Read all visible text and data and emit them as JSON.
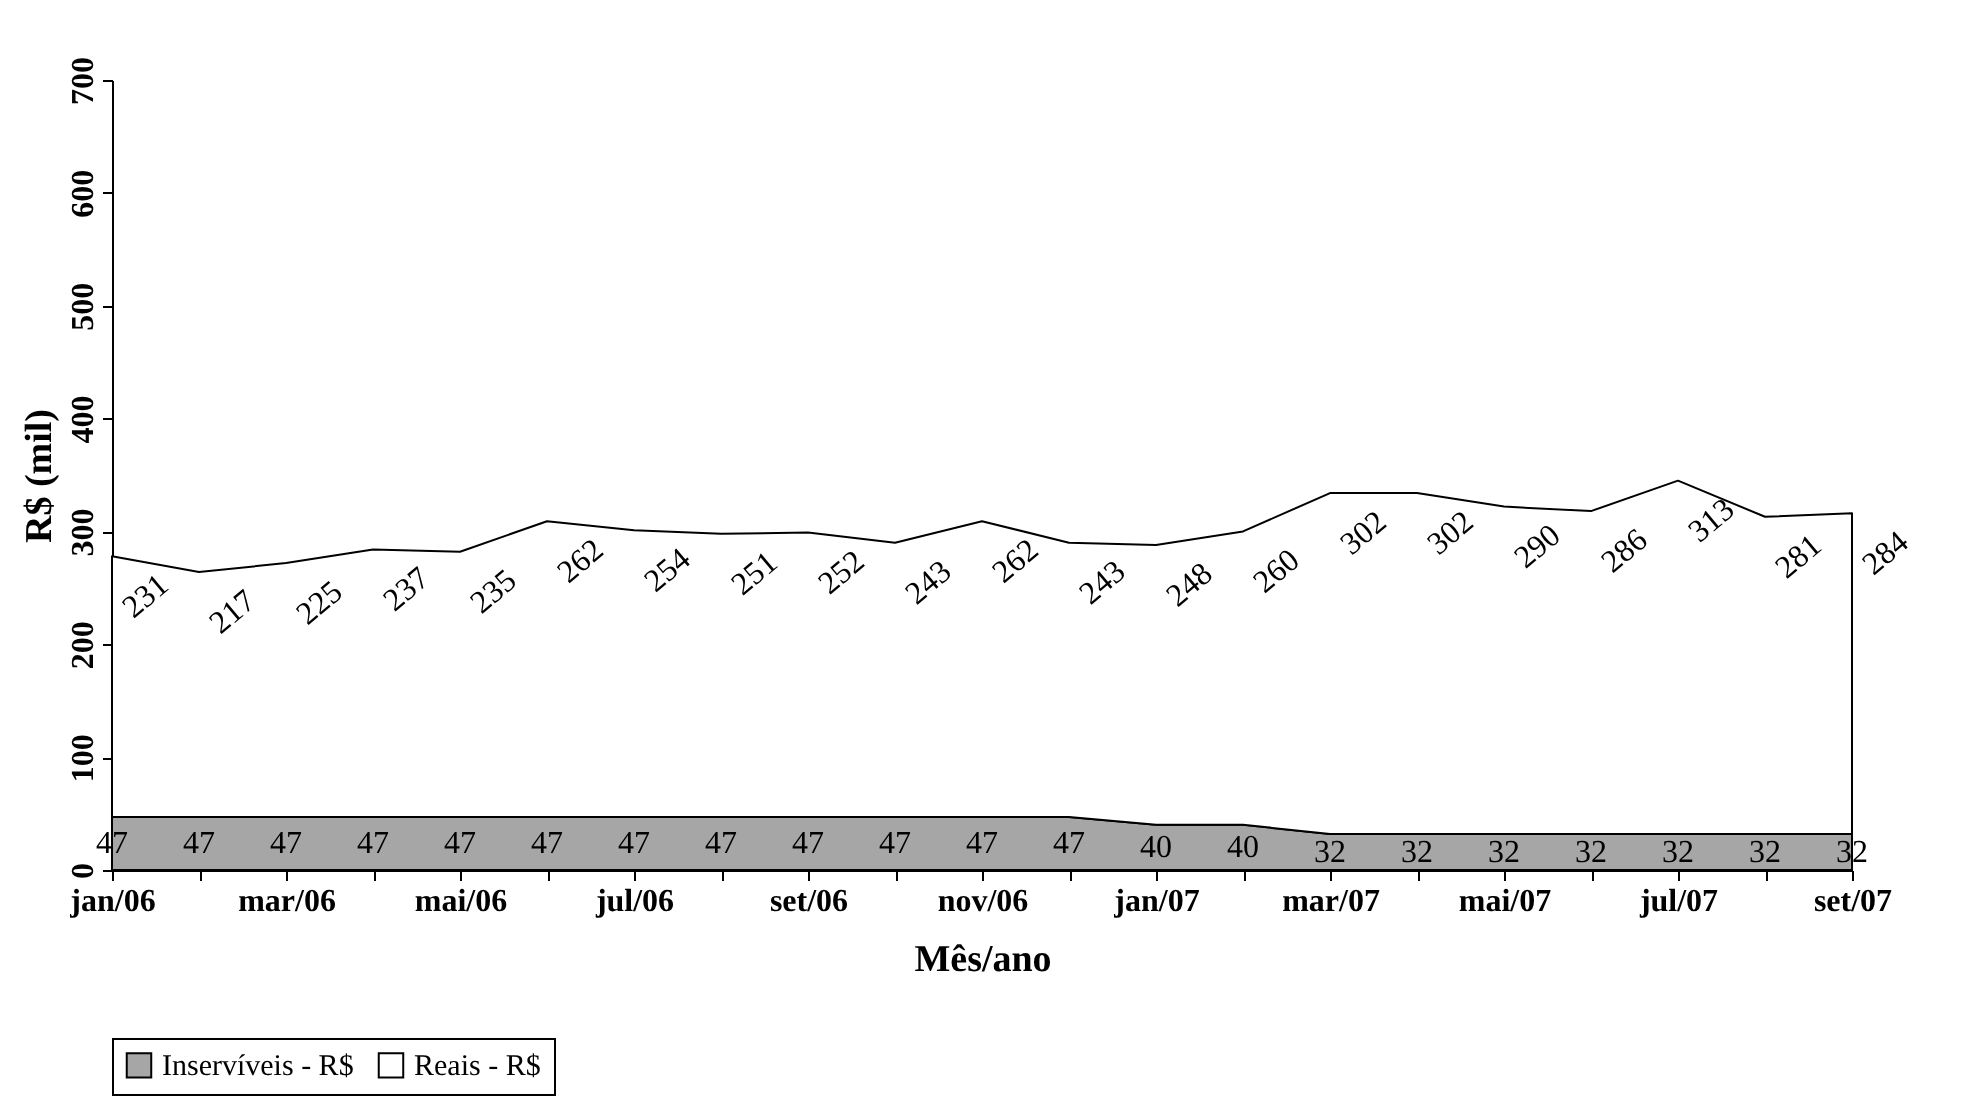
{
  "chart_data": {
    "type": "area",
    "stacked": true,
    "xlabel": "Mês/ano",
    "ylabel": "R$ (mil)",
    "categories": [
      "jan/06",
      null,
      "mar/06",
      null,
      "mai/06",
      null,
      "jul/06",
      null,
      "set/06",
      null,
      "nov/06",
      null,
      "jan/07",
      null,
      "mar/07",
      null,
      "mai/07",
      null,
      "jul/07",
      null,
      "set/07"
    ],
    "series": [
      {
        "name": "Inservíveis - R$",
        "color": "#a6a6a6",
        "values": [
          47,
          47,
          47,
          47,
          47,
          47,
          47,
          47,
          47,
          47,
          47,
          47,
          40,
          40,
          32,
          32,
          32,
          32,
          32,
          32,
          32
        ]
      },
      {
        "name": "Reais - R$",
        "color": "#ffffff",
        "values": [
          231,
          217,
          225,
          237,
          235,
          262,
          254,
          251,
          252,
          243,
          262,
          243,
          248,
          260,
          302,
          302,
          290,
          286,
          313,
          281,
          284
        ]
      }
    ],
    "ylim": [
      0,
      700
    ],
    "yticks": [
      0,
      100,
      200,
      300,
      400,
      500,
      600,
      700
    ],
    "data_labels": true,
    "grid": false,
    "legend": "bottom"
  }
}
